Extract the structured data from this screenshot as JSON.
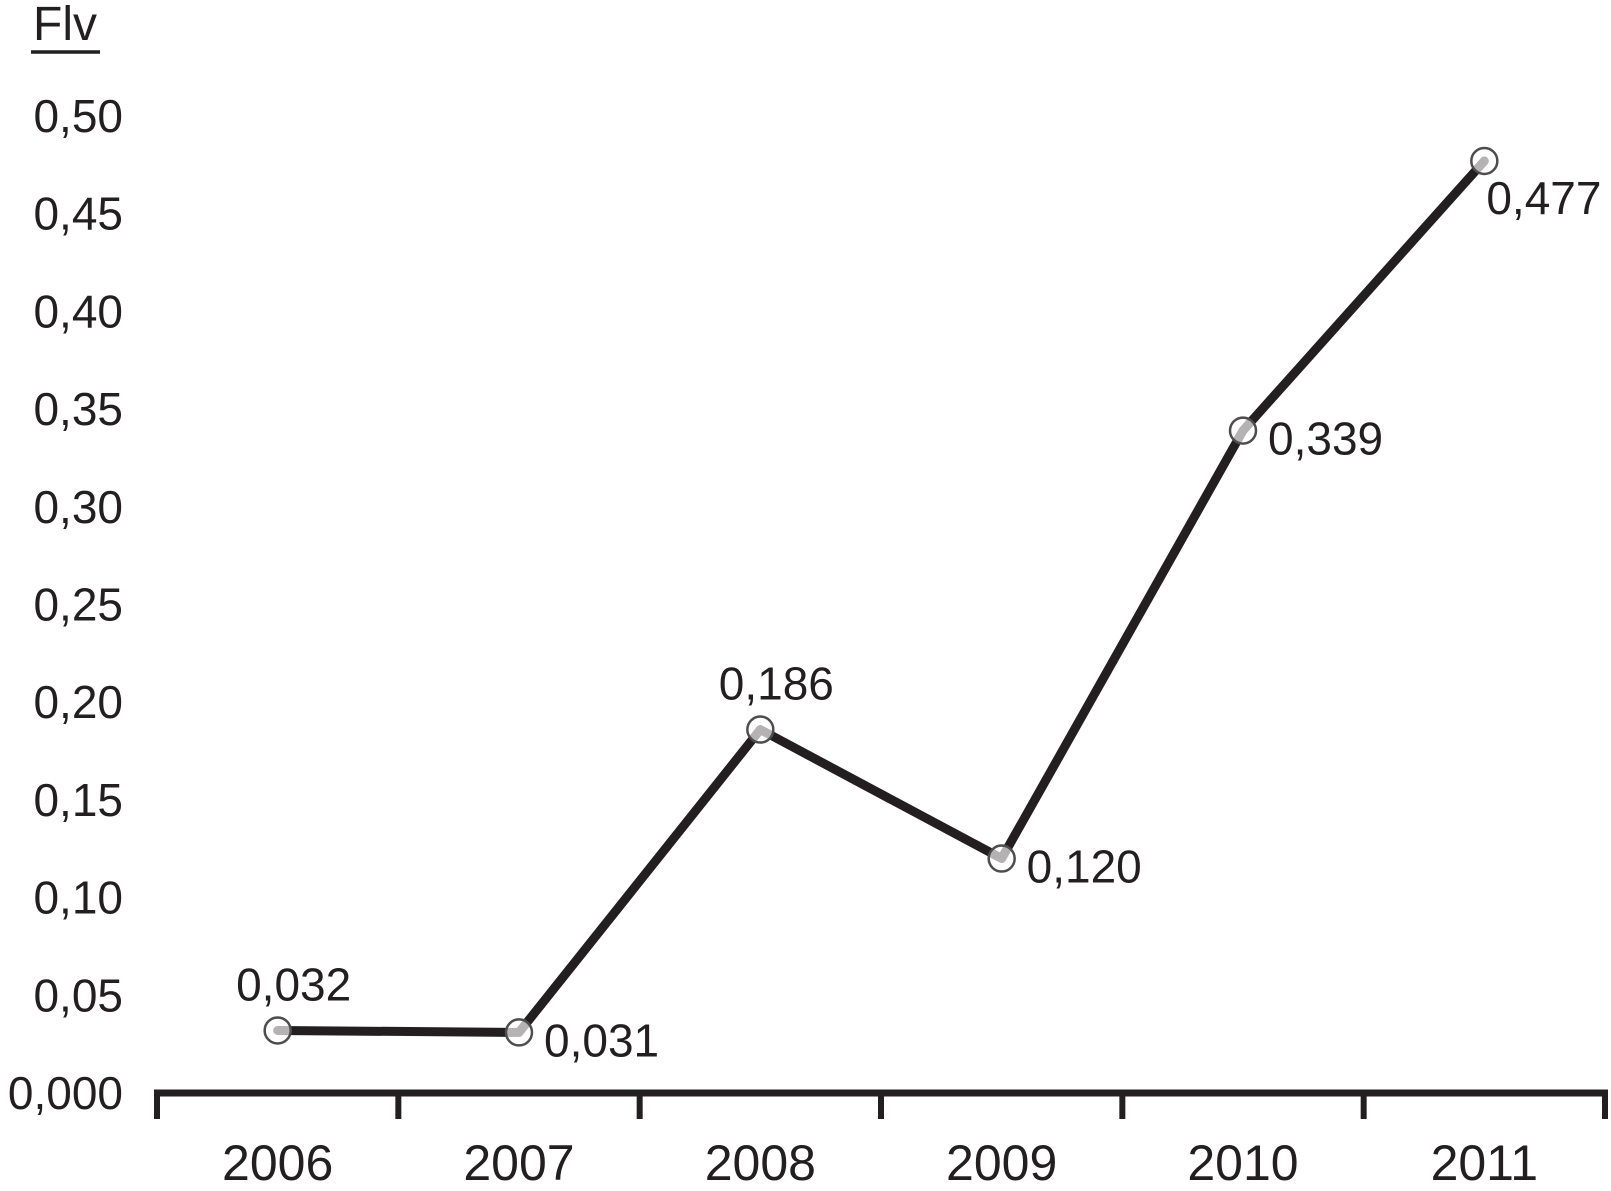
{
  "title": {
    "text": "Flv"
  },
  "chart_data": {
    "type": "line",
    "title": "Flv",
    "ylabel": "Flv",
    "xlabel": "",
    "categories": [
      "2006",
      "2007",
      "2008",
      "2009",
      "2010",
      "2011"
    ],
    "series": [
      {
        "name": "Flv",
        "values": [
          0.032,
          0.031,
          0.186,
          0.12,
          0.339,
          0.477
        ],
        "point_labels": [
          "0,032",
          "0,031",
          "0,186",
          "0,120",
          "0,339",
          "0,477"
        ],
        "label_positions": [
          "above",
          "right",
          "above",
          "right",
          "right",
          "below-right"
        ]
      }
    ],
    "ylim": [
      0,
      0.5
    ],
    "y_ticks": [
      {
        "value": 0.5,
        "label": "0,50"
      },
      {
        "value": 0.45,
        "label": "0,45"
      },
      {
        "value": 0.4,
        "label": "0,40"
      },
      {
        "value": 0.35,
        "label": "0,35"
      },
      {
        "value": 0.3,
        "label": "0,30"
      },
      {
        "value": 0.25,
        "label": "0,25"
      },
      {
        "value": 0.2,
        "label": "0,20"
      },
      {
        "value": 0.15,
        "label": "0,15"
      },
      {
        "value": 0.1,
        "label": "0,10"
      },
      {
        "value": 0.05,
        "label": "0,05"
      },
      {
        "value": 0.0,
        "label": "0,000"
      }
    ],
    "grid": false,
    "legend_position": "none",
    "decimal_separator": ",",
    "colors": {
      "line": "#231f20",
      "text": "#231f20",
      "axis": "#231f20",
      "marker_fill": "rgba(255,255,255,0.66)",
      "marker_stroke": "#4d4d4d"
    }
  }
}
